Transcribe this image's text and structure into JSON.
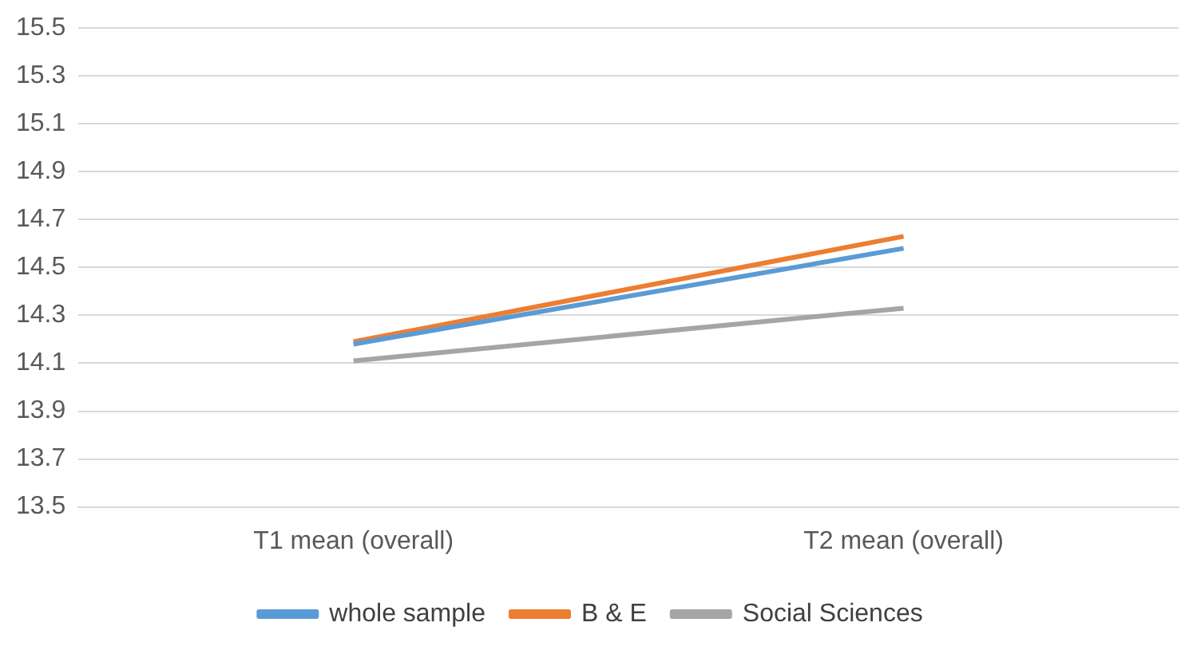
{
  "chart_data": {
    "type": "line",
    "categories": [
      "T1 mean (overall)",
      "T2 mean (overall)"
    ],
    "series": [
      {
        "name": "whole sample",
        "color": "#5b9bd5",
        "values": [
          14.18,
          14.58
        ]
      },
      {
        "name": "B & E",
        "color": "#ed7d31",
        "values": [
          14.19,
          14.63
        ]
      },
      {
        "name": "Social Sciences",
        "color": "#a5a5a5",
        "values": [
          14.11,
          14.33
        ]
      }
    ],
    "ylim": [
      13.5,
      15.5
    ],
    "yticks": [
      13.5,
      13.7,
      13.9,
      14.1,
      14.3,
      14.5,
      14.7,
      14.9,
      15.1,
      15.3,
      15.5
    ],
    "grid": "y",
    "legend": "bottom",
    "marker": "none",
    "line_style": "solid"
  }
}
